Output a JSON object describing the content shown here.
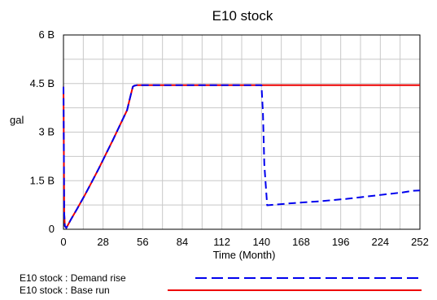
{
  "chart_data": {
    "type": "line",
    "title": "E10 stock",
    "xlabel": "Time (Month)",
    "ylabel": "gal",
    "xlim": [
      0,
      252
    ],
    "ylim": [
      0,
      6000000000
    ],
    "x_ticks": [
      0,
      28,
      56,
      84,
      112,
      140,
      168,
      196,
      224,
      252
    ],
    "x_tick_labels": [
      "0",
      "28",
      "56",
      "84",
      "112",
      "140",
      "168",
      "196",
      "224",
      "252"
    ],
    "y_ticks": [
      0,
      1500000000,
      3000000000,
      4500000000,
      6000000000
    ],
    "y_tick_labels": [
      "0",
      "1.5 B",
      "3 B",
      "4.5 B",
      "6 B"
    ],
    "grid": true,
    "legend_position": "bottom",
    "series": [
      {
        "name": "E10 stock : Demand rise",
        "color": "#0000ee",
        "dash": "dashed",
        "x": [
          0,
          0.5,
          1,
          2,
          5,
          10,
          15,
          20,
          25,
          30,
          35,
          40,
          45,
          47,
          49,
          50,
          52,
          140,
          141,
          142,
          144,
          150,
          160,
          170,
          180,
          190,
          200,
          210,
          220,
          230,
          240,
          247,
          252
        ],
        "y": [
          4400000000,
          500000000,
          100000000,
          40000000,
          280000000,
          660000000,
          1050000000,
          1460000000,
          1880000000,
          2320000000,
          2760000000,
          3220000000,
          3680000000,
          4050000000,
          4400000000,
          4430000000,
          4450000000,
          4450000000,
          3600000000,
          2000000000,
          740000000,
          760000000,
          800000000,
          830000000,
          860000000,
          900000000,
          940000000,
          990000000,
          1040000000,
          1090000000,
          1140000000,
          1190000000,
          1200000000
        ]
      },
      {
        "name": "E10 stock : Base run",
        "color": "#ee0000",
        "dash": "solid",
        "x": [
          0,
          0.5,
          1,
          2,
          5,
          10,
          15,
          20,
          25,
          30,
          35,
          40,
          45,
          47,
          49,
          50,
          52,
          100,
          200,
          252
        ],
        "y": [
          4400000000,
          500000000,
          100000000,
          40000000,
          280000000,
          660000000,
          1050000000,
          1460000000,
          1880000000,
          2320000000,
          2760000000,
          3220000000,
          3680000000,
          4050000000,
          4400000000,
          4430000000,
          4450000000,
          4450000000,
          4450000000,
          4450000000
        ]
      }
    ]
  }
}
